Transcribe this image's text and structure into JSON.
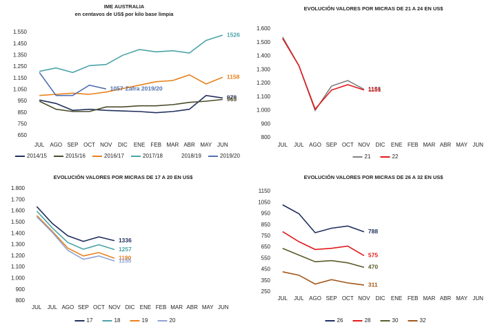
{
  "chart_data": [
    {
      "type": "line",
      "title": "IME AUSTRALIA",
      "subtitle": "en centavos de US$ por kilo base limpia",
      "categories": [
        "JUL",
        "AGO",
        "SEP",
        "OCT",
        "NOV",
        "DIC",
        "ENE",
        "FEB",
        "MAR",
        "ABR",
        "MAY",
        "JUN"
      ],
      "ylim": [
        650,
        1580
      ],
      "yticks": [
        650,
        750,
        850,
        950,
        {
          "value": 1050,
          "label": "1.050"
        },
        {
          "value": 1150,
          "label": "1.150"
        },
        {
          "value": 1250,
          "label": "1.250"
        },
        {
          "value": 1350,
          "label": "1.350"
        },
        {
          "value": 1450,
          "label": "1.450"
        },
        {
          "value": 1550,
          "label": "1.550"
        }
      ],
      "data_labels": "last",
      "annotation": "Zafra 2019/20",
      "series": [
        {
          "name": "2014/15",
          "color": "#1f2f5c",
          "values": [
            960,
            930,
            870,
            880,
            870,
            865,
            860,
            850,
            860,
            880,
            1000,
            978
          ]
        },
        {
          "name": "2015/16",
          "color": "#4a4a2a",
          "values": [
            950,
            880,
            860,
            860,
            900,
            900,
            910,
            910,
            920,
            940,
            950,
            965
          ]
        },
        {
          "name": "2016/17",
          "color": "#e8801a",
          "values": [
            1000,
            1010,
            1020,
            1010,
            1030,
            1060,
            1090,
            1120,
            1130,
            1180,
            1100,
            1158
          ]
        },
        {
          "name": "2017/18",
          "color": "#4aa3a8",
          "values": [
            1210,
            1240,
            1200,
            1260,
            1270,
            1350,
            1400,
            1380,
            1390,
            1370,
            1480,
            1526
          ]
        },
        {
          "name": "2018/19",
          "color": "#ffffff",
          "values": [
            null,
            null,
            null,
            null,
            null,
            null,
            null,
            null,
            null,
            null,
            null,
            null
          ]
        },
        {
          "name": "2019/20",
          "color": "#4f6fb0",
          "values": [
            1200,
            1000,
            1000,
            1090,
            1057,
            null,
            null,
            null,
            null,
            null,
            null,
            null
          ]
        }
      ]
    },
    {
      "type": "line",
      "title": "EVOLUCIÓN VALORES POR MICRAS DE 21 A 24 EN US$",
      "categories": [
        "JUL",
        "JUL",
        "AGO",
        "SEP",
        "OCT",
        "NOV",
        "DIC",
        "ENE",
        "FEB",
        "MAR",
        "ABR",
        "MAY",
        "JUN"
      ],
      "ylim": [
        800,
        1600
      ],
      "yticks": [
        800,
        900,
        {
          "value": 1000,
          "label": "1.000"
        },
        {
          "value": 1100,
          "label": "1.100"
        },
        {
          "value": 1200,
          "label": "1.200"
        },
        {
          "value": 1300,
          "label": "1.300"
        },
        {
          "value": 1400,
          "label": "1.400"
        },
        {
          "value": 1500,
          "label": "1.500"
        },
        {
          "value": 1600,
          "label": "1.600"
        }
      ],
      "data_labels": "last",
      "series": [
        {
          "name": "21",
          "color": "#7f7f7f",
          "values": [
            1540,
            1330,
            1000,
            1180,
            1220,
            1156,
            null,
            null,
            null,
            null,
            null,
            null,
            null
          ]
        },
        {
          "name": "22",
          "color": "#e0181b",
          "values": [
            1530,
            1330,
            1010,
            1150,
            1190,
            1151,
            null,
            null,
            null,
            null,
            null,
            null,
            null
          ]
        }
      ]
    },
    {
      "type": "line",
      "title": "EVOLUCIÓN VALORES POR MICRAS DE 17 A 20 EN US$",
      "categories": [
        "JUL",
        "JUL",
        "AGO",
        "SEP",
        "OCT",
        "NOV",
        "DIC",
        "ENE",
        "FEB",
        "MAR",
        "ABR",
        "MAY",
        "JUN"
      ],
      "ylim": [
        800,
        1800
      ],
      "yticks": [
        800,
        900,
        {
          "value": 1000,
          "label": "1.000"
        },
        {
          "value": 1100,
          "label": "1.100"
        },
        {
          "value": 1200,
          "label": "1.200"
        },
        {
          "value": 1300,
          "label": "1.300"
        },
        {
          "value": 1400,
          "label": "1.400"
        },
        {
          "value": 1500,
          "label": "1.500"
        },
        {
          "value": 1600,
          "label": "1.600"
        },
        {
          "value": 1700,
          "label": "1.700"
        },
        {
          "value": 1800,
          "label": "1.800"
        }
      ],
      "data_labels": "last",
      "series": [
        {
          "name": "17",
          "color": "#1f2f5c",
          "values": [
            1640,
            1490,
            1380,
            1330,
            1370,
            1336,
            null,
            null,
            null,
            null,
            null,
            null,
            null
          ]
        },
        {
          "name": "18",
          "color": "#4aa3a8",
          "values": [
            1600,
            1450,
            1320,
            1260,
            1300,
            1257,
            null,
            null,
            null,
            null,
            null,
            null,
            null
          ]
        },
        {
          "name": "19",
          "color": "#e8801a",
          "values": [
            1560,
            1420,
            1270,
            1200,
            1230,
            1180,
            null,
            null,
            null,
            null,
            null,
            null,
            null
          ]
        },
        {
          "name": "20",
          "color": "#8fa2d8",
          "values": [
            1550,
            1410,
            1250,
            1170,
            1200,
            1155,
            null,
            null,
            null,
            null,
            null,
            null,
            null
          ]
        }
      ]
    },
    {
      "type": "line",
      "title": "EVOLUCIÓN VALORES POR MICRAS DE 26 A 32 EN US$",
      "categories": [
        "JUL",
        "JUL",
        "AGO",
        "SEP",
        "OCT",
        "NOV",
        "DIC",
        "ENE",
        "FEB",
        "MAR",
        "ABR",
        "MAY",
        "JUN"
      ],
      "ylim": [
        250,
        1150
      ],
      "yticks": [
        250,
        350,
        450,
        550,
        650,
        750,
        850,
        950,
        1050,
        1150
      ],
      "data_labels": "last",
      "series": [
        {
          "name": "26",
          "color": "#1f2f5c",
          "values": [
            1030,
            950,
            780,
            820,
            840,
            788,
            null,
            null,
            null,
            null,
            null,
            null,
            null
          ]
        },
        {
          "name": "28",
          "color": "#e0181b",
          "values": [
            790,
            700,
            630,
            640,
            660,
            575,
            null,
            null,
            null,
            null,
            null,
            null,
            null
          ]
        },
        {
          "name": "30",
          "color": "#5a5a2a",
          "values": [
            640,
            580,
            520,
            530,
            510,
            470,
            null,
            null,
            null,
            null,
            null,
            null,
            null
          ]
        },
        {
          "name": "32",
          "color": "#a0561a",
          "values": [
            430,
            400,
            320,
            360,
            330,
            311,
            null,
            null,
            null,
            null,
            null,
            null,
            null
          ]
        }
      ]
    }
  ]
}
